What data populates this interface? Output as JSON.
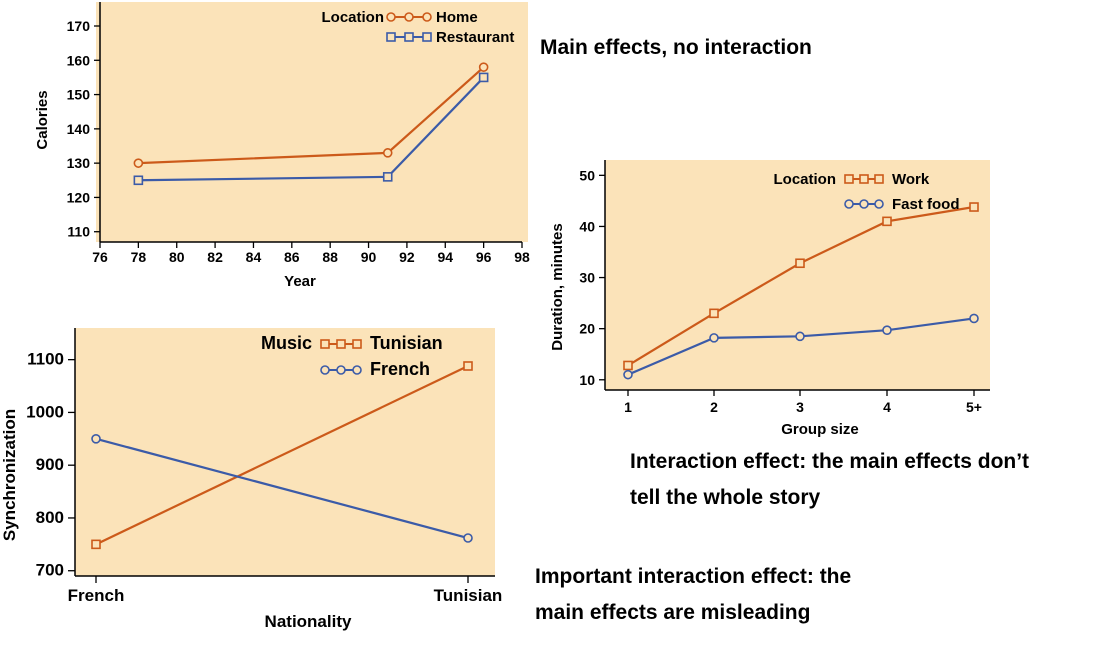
{
  "captions": {
    "c1": "Main effects, no interaction",
    "c2_line1": "Interaction effect: the main effects  don’t",
    "c2_line2": "tell the whole story",
    "c3_line1": "Important interaction effect: the",
    "c3_line2": "main effects are misleading"
  },
  "chart_data": [
    {
      "id": "c1",
      "type": "line",
      "xlabel": "Year",
      "ylabel": "Calories",
      "xlim": [
        76,
        98
      ],
      "ylim": [
        107,
        177
      ],
      "xticks": [
        76,
        78,
        80,
        82,
        84,
        86,
        88,
        90,
        92,
        94,
        96,
        98
      ],
      "yticks": [
        110,
        120,
        130,
        140,
        150,
        160,
        170
      ],
      "legend_title": "Location",
      "legend_position": "top-right",
      "grid": false,
      "series": [
        {
          "name": "Home",
          "color": "#cc5a1a",
          "marker": "circle",
          "x": [
            78,
            91,
            96
          ],
          "y": [
            130,
            133,
            158
          ]
        },
        {
          "name": "Restaurant",
          "color": "#3b5ba8",
          "marker": "square",
          "x": [
            78,
            91,
            96
          ],
          "y": [
            125,
            126,
            155
          ]
        }
      ]
    },
    {
      "id": "c2",
      "type": "line",
      "xlabel": "Group size",
      "ylabel": "Duration, minutes",
      "categories": [
        "1",
        "2",
        "3",
        "4",
        "5+"
      ],
      "ylim": [
        8,
        53
      ],
      "yticks": [
        10,
        20,
        30,
        40,
        50
      ],
      "legend_title": "Location",
      "legend_position": "top-right",
      "grid": false,
      "series": [
        {
          "name": "Work",
          "color": "#cc5a1a",
          "marker": "square",
          "values": [
            12.8,
            23,
            32.8,
            41,
            43.8
          ]
        },
        {
          "name": "Fast food",
          "color": "#3b5ba8",
          "marker": "circle",
          "values": [
            11,
            18.2,
            18.5,
            19.7,
            22
          ]
        }
      ]
    },
    {
      "id": "c3",
      "type": "line",
      "xlabel": "Nationality",
      "ylabel": "Synchronization",
      "categories": [
        "French",
        "Tunisian"
      ],
      "ylim": [
        690,
        1160
      ],
      "yticks": [
        700,
        800,
        900,
        1000,
        1100
      ],
      "legend_title": "Music",
      "legend_position": "top-right",
      "grid": false,
      "series": [
        {
          "name": "Tunisian",
          "color": "#cc5a1a",
          "marker": "square",
          "values": [
            750,
            1088
          ]
        },
        {
          "name": "French",
          "color": "#3b5ba8",
          "marker": "circle",
          "values": [
            950,
            762
          ]
        }
      ]
    }
  ]
}
